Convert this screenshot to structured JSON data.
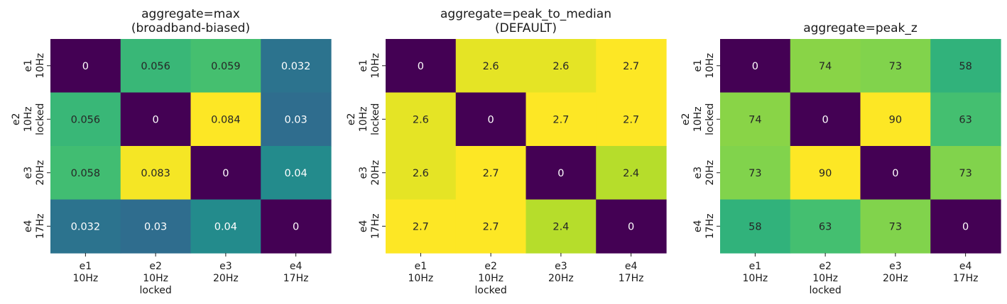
{
  "chart_data": [
    {
      "type": "heatmap",
      "title": [
        "aggregate=max",
        "(broadband-biased)"
      ],
      "x_labels": [
        [
          "e1",
          "10Hz"
        ],
        [
          "e2",
          "10Hz",
          "locked"
        ],
        [
          "e3",
          "20Hz"
        ],
        [
          "e4",
          "17Hz"
        ]
      ],
      "y_labels": [
        [
          "e1",
          "10Hz"
        ],
        [
          "e2",
          "10Hz",
          "locked"
        ],
        [
          "e3",
          "20Hz"
        ],
        [
          "e4",
          "17Hz"
        ]
      ],
      "values": [
        [
          0,
          0.056,
          0.059,
          0.032
        ],
        [
          0.056,
          0,
          0.084,
          0.03
        ],
        [
          0.058,
          0.083,
          0,
          0.04
        ],
        [
          0.032,
          0.03,
          0.04,
          0
        ]
      ],
      "labels": [
        [
          "0",
          "0.056",
          "0.059",
          "0.032"
        ],
        [
          "0.056",
          "0",
          "0.084",
          "0.03"
        ],
        [
          "0.058",
          "0.083",
          "0",
          "0.04"
        ],
        [
          "0.032",
          "0.03",
          "0.04",
          "0"
        ]
      ],
      "colormap": "viridis",
      "colorbar": false
    },
    {
      "type": "heatmap",
      "title": [
        "aggregate=peak_to_median",
        "(DEFAULT)"
      ],
      "x_labels": [
        [
          "e1",
          "10Hz"
        ],
        [
          "e2",
          "10Hz",
          "locked"
        ],
        [
          "e3",
          "20Hz"
        ],
        [
          "e4",
          "17Hz"
        ]
      ],
      "y_labels": [
        [
          "e1",
          "10Hz"
        ],
        [
          "e2",
          "10Hz",
          "locked"
        ],
        [
          "e3",
          "20Hz"
        ],
        [
          "e4",
          "17Hz"
        ]
      ],
      "values": [
        [
          0,
          2.6,
          2.6,
          2.7
        ],
        [
          2.6,
          0,
          2.7,
          2.7
        ],
        [
          2.6,
          2.7,
          0,
          2.4
        ],
        [
          2.7,
          2.7,
          2.4,
          0
        ]
      ],
      "labels": [
        [
          "0",
          "2.6",
          "2.6",
          "2.7"
        ],
        [
          "2.6",
          "0",
          "2.7",
          "2.7"
        ],
        [
          "2.6",
          "2.7",
          "0",
          "2.4"
        ],
        [
          "2.7",
          "2.7",
          "2.4",
          "0"
        ]
      ],
      "colormap": "viridis",
      "colorbar": false
    },
    {
      "type": "heatmap",
      "title": [
        "aggregate=peak_z"
      ],
      "x_labels": [
        [
          "e1",
          "10Hz"
        ],
        [
          "e2",
          "10Hz",
          "locked"
        ],
        [
          "e3",
          "20Hz"
        ],
        [
          "e4",
          "17Hz"
        ]
      ],
      "y_labels": [
        [
          "e1",
          "10Hz"
        ],
        [
          "e2",
          "10Hz",
          "locked"
        ],
        [
          "e3",
          "20Hz"
        ],
        [
          "e4",
          "17Hz"
        ]
      ],
      "values": [
        [
          0,
          74,
          73,
          58
        ],
        [
          74,
          0,
          90,
          63
        ],
        [
          73,
          90,
          0,
          73
        ],
        [
          58,
          63,
          73,
          0
        ]
      ],
      "labels": [
        [
          "0",
          "74",
          "73",
          "58"
        ],
        [
          "74",
          "0",
          "90",
          "63"
        ],
        [
          "73",
          "90",
          "0",
          "73"
        ],
        [
          "58",
          "63",
          "73",
          "0"
        ]
      ],
      "colormap": "viridis",
      "colorbar": false
    }
  ]
}
